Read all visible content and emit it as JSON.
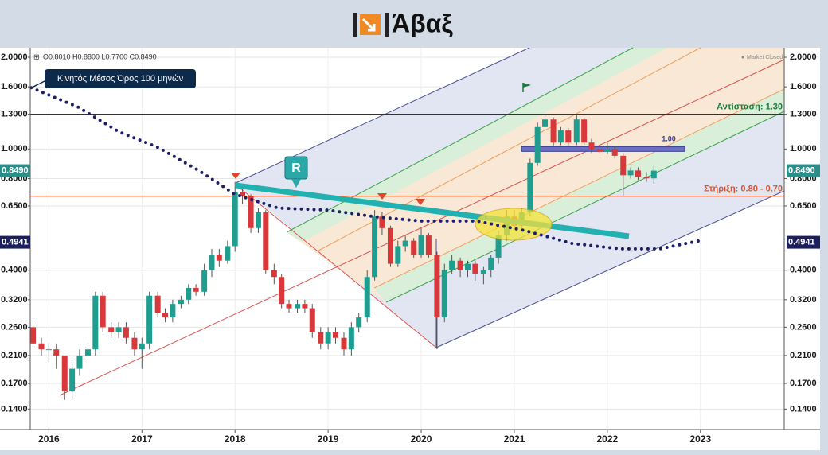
{
  "header": {
    "logo_text": "Άβαξ"
  },
  "chart_data": {
    "type": "candlestick",
    "ohlc_label": "O0.8010 H0.8800 L0.7700 C0.8490",
    "status": "Market Closed",
    "x": [
      2015.83,
      2015.92,
      2016.0,
      2016.08,
      2016.17,
      2016.25,
      2016.33,
      2016.42,
      2016.5,
      2016.58,
      2016.67,
      2016.75,
      2016.83,
      2016.92,
      2017.0,
      2017.08,
      2017.17,
      2017.25,
      2017.33,
      2017.42,
      2017.5,
      2017.58,
      2017.67,
      2017.75,
      2017.83,
      2017.92,
      2018.0,
      2018.08,
      2018.17,
      2018.25,
      2018.33,
      2018.42,
      2018.5,
      2018.58,
      2018.67,
      2018.75,
      2018.83,
      2018.92,
      2019.0,
      2019.08,
      2019.17,
      2019.25,
      2019.33,
      2019.42,
      2019.5,
      2019.58,
      2019.67,
      2019.75,
      2019.83,
      2019.92,
      2020.0,
      2020.08,
      2020.17,
      2020.25,
      2020.33,
      2020.42,
      2020.5,
      2020.58,
      2020.67,
      2020.75,
      2020.83,
      2020.92,
      2021.0,
      2021.08,
      2021.17,
      2021.25,
      2021.33,
      2021.42,
      2021.5,
      2021.58,
      2021.67,
      2021.75,
      2021.83,
      2021.92,
      2022.0,
      2022.08,
      2022.17,
      2022.25,
      2022.33,
      2022.42,
      2022.5
    ],
    "open": [
      0.26,
      0.23,
      0.22,
      0.22,
      0.21,
      0.16,
      0.19,
      0.21,
      0.22,
      0.33,
      0.26,
      0.25,
      0.26,
      0.24,
      0.22,
      0.23,
      0.33,
      0.29,
      0.28,
      0.31,
      0.32,
      0.35,
      0.34,
      0.4,
      0.45,
      0.43,
      0.48,
      0.72,
      0.7,
      0.55,
      0.62,
      0.4,
      0.38,
      0.31,
      0.3,
      0.31,
      0.3,
      0.25,
      0.23,
      0.25,
      0.24,
      0.22,
      0.26,
      0.28,
      0.38,
      0.6,
      0.55,
      0.42,
      0.48,
      0.5,
      0.45,
      0.52,
      0.45,
      0.28,
      0.4,
      0.43,
      0.4,
      0.42,
      0.39,
      0.4,
      0.44,
      0.52,
      0.6,
      0.56,
      0.62,
      0.9,
      1.18,
      1.25,
      1.05,
      1.15,
      1.05,
      1.25,
      1.05,
      1.0,
      0.98,
      1.0,
      0.95,
      0.82,
      0.85,
      0.81,
      0.801
    ],
    "high": [
      0.27,
      0.24,
      0.23,
      0.23,
      0.21,
      0.2,
      0.22,
      0.23,
      0.34,
      0.34,
      0.27,
      0.27,
      0.27,
      0.25,
      0.24,
      0.34,
      0.34,
      0.3,
      0.32,
      0.33,
      0.36,
      0.36,
      0.42,
      0.47,
      0.47,
      0.5,
      0.78,
      0.75,
      0.71,
      0.64,
      0.63,
      0.42,
      0.39,
      0.32,
      0.32,
      0.32,
      0.31,
      0.26,
      0.26,
      0.26,
      0.25,
      0.27,
      0.29,
      0.4,
      0.63,
      0.62,
      0.56,
      0.5,
      0.52,
      0.51,
      0.55,
      0.53,
      0.46,
      0.42,
      0.45,
      0.44,
      0.43,
      0.43,
      0.41,
      0.45,
      0.54,
      0.63,
      0.63,
      0.64,
      0.93,
      1.22,
      1.3,
      1.27,
      1.18,
      1.17,
      1.3,
      1.27,
      1.08,
      1.03,
      1.05,
      1.02,
      0.97,
      0.87,
      0.87,
      0.84,
      0.88
    ],
    "low": [
      0.22,
      0.21,
      0.2,
      0.19,
      0.15,
      0.15,
      0.18,
      0.2,
      0.21,
      0.25,
      0.24,
      0.24,
      0.23,
      0.21,
      0.19,
      0.22,
      0.28,
      0.27,
      0.27,
      0.3,
      0.31,
      0.33,
      0.33,
      0.38,
      0.41,
      0.42,
      0.46,
      0.66,
      0.53,
      0.53,
      0.39,
      0.36,
      0.3,
      0.29,
      0.29,
      0.29,
      0.24,
      0.22,
      0.22,
      0.23,
      0.21,
      0.21,
      0.25,
      0.27,
      0.37,
      0.52,
      0.41,
      0.41,
      0.46,
      0.44,
      0.44,
      0.44,
      0.22,
      0.27,
      0.39,
      0.38,
      0.38,
      0.37,
      0.36,
      0.38,
      0.42,
      0.5,
      0.54,
      0.54,
      0.6,
      0.88,
      1.15,
      1.02,
      1.03,
      1.02,
      1.03,
      1.03,
      0.97,
      0.95,
      0.96,
      0.93,
      0.7,
      0.8,
      0.79,
      0.78,
      0.77
    ],
    "close": [
      0.23,
      0.22,
      0.22,
      0.21,
      0.16,
      0.19,
      0.21,
      0.22,
      0.33,
      0.26,
      0.25,
      0.26,
      0.24,
      0.22,
      0.23,
      0.33,
      0.29,
      0.28,
      0.31,
      0.32,
      0.35,
      0.34,
      0.4,
      0.45,
      0.43,
      0.48,
      0.72,
      0.7,
      0.55,
      0.62,
      0.4,
      0.38,
      0.31,
      0.3,
      0.31,
      0.3,
      0.25,
      0.23,
      0.25,
      0.24,
      0.22,
      0.26,
      0.28,
      0.38,
      0.6,
      0.55,
      0.42,
      0.48,
      0.5,
      0.45,
      0.52,
      0.45,
      0.28,
      0.4,
      0.43,
      0.4,
      0.42,
      0.39,
      0.4,
      0.44,
      0.52,
      0.6,
      0.56,
      0.62,
      0.9,
      1.18,
      1.25,
      1.05,
      1.15,
      1.05,
      1.25,
      1.05,
      1.0,
      0.98,
      1.0,
      0.95,
      0.82,
      0.85,
      0.81,
      0.801,
      0.849
    ],
    "up_color": "#1f9d8f",
    "down_color": "#d8383a",
    "moving_average": {
      "name": "Κινητός Μέσος Όρος 100 μηνών",
      "color": "#1c1f66",
      "x": [
        2015.81,
        2016.32,
        2016.75,
        2017.18,
        2017.61,
        2018.0,
        2018.46,
        2019.0,
        2019.49,
        2020.0,
        2020.6,
        2021.11,
        2021.62,
        2022.14,
        2022.56,
        2022.99
      ],
      "values": [
        1.59,
        1.37,
        1.14,
        1.01,
        0.85,
        0.71,
        0.64,
        0.63,
        0.6,
        0.58,
        0.58,
        0.54,
        0.49,
        0.47,
        0.47,
        0.5
      ]
    },
    "levels": [
      {
        "name": "Αντίσταση: 1.30",
        "value": 1.3,
        "color": "#333333",
        "label_color": "#1e7a3c"
      },
      {
        "name": "Στήριξη: 0.80 - 0.70",
        "value": 0.7,
        "color": "#e0502a",
        "label_color": "#e0502a"
      }
    ],
    "marker_level": {
      "value": 1.0,
      "label": "1.00"
    },
    "pattern_label": "R",
    "price_tags": [
      {
        "value": 0.849,
        "label": "0.8490",
        "color": "#2a8f8a"
      },
      {
        "value": 0.4941,
        "label": "0.4941",
        "color": "#1c1f5e"
      }
    ],
    "xlim": [
      2015.8,
      2023.9
    ],
    "xticks": [
      2016,
      2017,
      2018,
      2019,
      2020,
      2021,
      2022,
      2023
    ],
    "ylim": [
      0.12,
      2.15
    ],
    "yticks": [
      {
        "value": 2,
        "label": "2.0000"
      },
      {
        "value": 1.6,
        "label": "1.6000"
      },
      {
        "value": 1.3,
        "label": "1.3000"
      },
      {
        "value": 1,
        "label": "1.0000"
      },
      {
        "value": 0.8,
        "label": "0.8000"
      },
      {
        "value": 0.65,
        "label": "0.6500"
      },
      {
        "value": 0.4,
        "label": "0.4000"
      },
      {
        "value": 0.32,
        "label": "0.3200"
      },
      {
        "value": 0.26,
        "label": "0.2600"
      },
      {
        "value": 0.21,
        "label": "0.2100"
      },
      {
        "value": 0.17,
        "label": "0.1700"
      },
      {
        "value": 0.14,
        "label": "0.1400"
      }
    ],
    "log_scale": true,
    "grid": true
  }
}
